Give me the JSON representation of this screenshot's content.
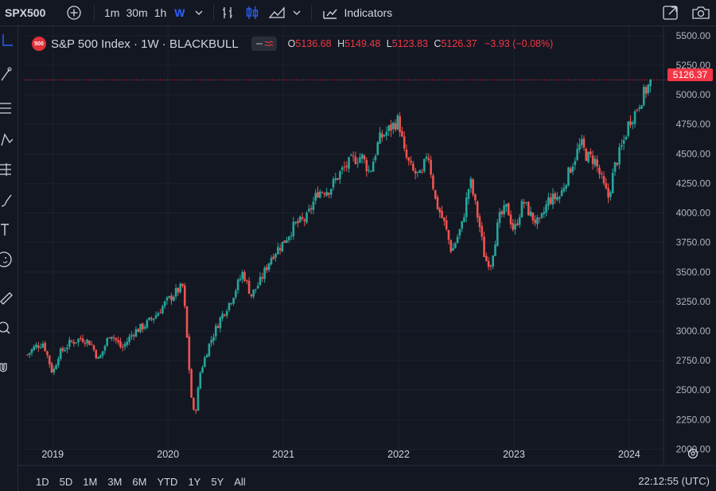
{
  "symbol": "SPX500",
  "timeframes": [
    "1m",
    "30m",
    "1h",
    "W"
  ],
  "active_timeframe": "W",
  "indicators_label": "Indicators",
  "legend": {
    "badge": "500",
    "title": "S&P 500 Index · 1W · BLACKBULL",
    "o_key": "O",
    "o": "5136.68",
    "h_key": "H",
    "h": "5149.48",
    "l_key": "L",
    "l": "5123.83",
    "c_key": "C",
    "c": "5126.37",
    "change": "−3.93 (−0.08%)"
  },
  "last_price_label": "5126.37",
  "ranges": [
    "1D",
    "5D",
    "1M",
    "3M",
    "6M",
    "YTD",
    "1Y",
    "5Y",
    "All"
  ],
  "clock": "22:12:55 (UTC)",
  "colors": {
    "up": "#26a69a",
    "down": "#ef5350",
    "bg": "#131722",
    "accent": "#2962ff",
    "tag": "#f23645"
  },
  "chart_data": {
    "type": "candlestick",
    "title": "S&P 500 Index · 1W · BLACKBULL",
    "y_ticks": [
      2000,
      2250,
      2500,
      2750,
      3000,
      3250,
      3500,
      3750,
      4000,
      4250,
      4500,
      4750,
      5000,
      5250,
      5500
    ],
    "y_tick_labels": [
      "2000.00",
      "2250.00",
      "2500.00",
      "2750.00",
      "3000.00",
      "3250.00",
      "3500.00",
      "3750.00",
      "4000.00",
      "4250.00",
      "4500.00",
      "4750.00",
      "5000.00",
      "5250.00",
      "5500.00"
    ],
    "ylim": [
      1875,
      5580
    ],
    "x_labels": [
      "2019",
      "2020",
      "2021",
      "2022",
      "2023",
      "2024"
    ],
    "x_label_years": [
      2019,
      2020,
      2021,
      2022,
      2023,
      2024
    ],
    "xlim": [
      2018.75,
      2024.29
    ],
    "close_path": [
      [
        2018.78,
        2800
      ],
      [
        2018.85,
        2870
      ],
      [
        2018.92,
        2900
      ],
      [
        2019.0,
        2640
      ],
      [
        2019.05,
        2800
      ],
      [
        2019.15,
        2900
      ],
      [
        2019.25,
        2940
      ],
      [
        2019.33,
        2900
      ],
      [
        2019.4,
        2750
      ],
      [
        2019.5,
        2990
      ],
      [
        2019.6,
        2850
      ],
      [
        2019.7,
        2990
      ],
      [
        2019.8,
        3050
      ],
      [
        2019.9,
        3140
      ],
      [
        2019.97,
        3230
      ],
      [
        2020.07,
        3330
      ],
      [
        2020.13,
        3380
      ],
      [
        2020.16,
        3000
      ],
      [
        2020.2,
        2460
      ],
      [
        2020.23,
        2260
      ],
      [
        2020.28,
        2650
      ],
      [
        2020.35,
        2870
      ],
      [
        2020.45,
        3100
      ],
      [
        2020.55,
        3270
      ],
      [
        2020.65,
        3500
      ],
      [
        2020.72,
        3300
      ],
      [
        2020.8,
        3420
      ],
      [
        2020.9,
        3640
      ],
      [
        2021.0,
        3750
      ],
      [
        2021.1,
        3900
      ],
      [
        2021.2,
        3950
      ],
      [
        2021.3,
        4180
      ],
      [
        2021.4,
        4200
      ],
      [
        2021.5,
        4350
      ],
      [
        2021.6,
        4450
      ],
      [
        2021.68,
        4480
      ],
      [
        2021.75,
        4340
      ],
      [
        2021.83,
        4620
      ],
      [
        2021.9,
        4690
      ],
      [
        2022.0,
        4790
      ],
      [
        2022.05,
        4500
      ],
      [
        2022.12,
        4350
      ],
      [
        2022.2,
        4300
      ],
      [
        2022.25,
        4540
      ],
      [
        2022.32,
        4100
      ],
      [
        2022.4,
        3900
      ],
      [
        2022.46,
        3670
      ],
      [
        2022.55,
        3900
      ],
      [
        2022.62,
        4280
      ],
      [
        2022.7,
        3900
      ],
      [
        2022.75,
        3600
      ],
      [
        2022.8,
        3580
      ],
      [
        2022.87,
        3950
      ],
      [
        2022.94,
        4050
      ],
      [
        2023.0,
        3840
      ],
      [
        2023.08,
        4100
      ],
      [
        2023.15,
        3970
      ],
      [
        2023.22,
        3900
      ],
      [
        2023.3,
        4110
      ],
      [
        2023.4,
        4140
      ],
      [
        2023.45,
        4280
      ],
      [
        2023.52,
        4450
      ],
      [
        2023.58,
        4590
      ],
      [
        2023.63,
        4480
      ],
      [
        2023.7,
        4450
      ],
      [
        2023.78,
        4220
      ],
      [
        2023.82,
        4130
      ],
      [
        2023.87,
        4380
      ],
      [
        2023.95,
        4600
      ],
      [
        2024.0,
        4780
      ],
      [
        2024.05,
        4850
      ],
      [
        2024.1,
        4960
      ],
      [
        2024.15,
        5050
      ],
      [
        2024.2,
        5126
      ]
    ],
    "last_price": 5126.37
  }
}
